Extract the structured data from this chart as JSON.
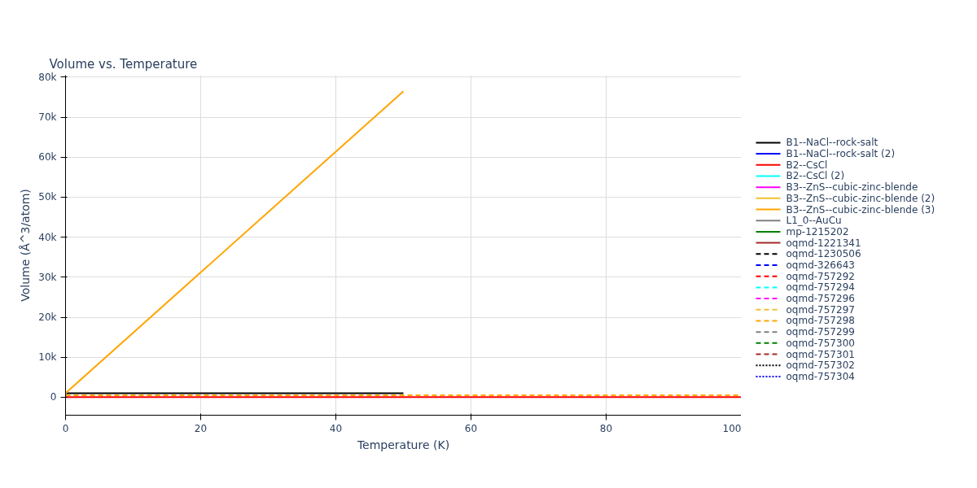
{
  "chart_data": {
    "type": "line",
    "title": "Volume vs. Temperature",
    "xlabel": "Temperature (K)",
    "ylabel": "Volume (Å^3/atom)",
    "xlim": [
      0,
      100
    ],
    "xticks": [
      0,
      20,
      40,
      60,
      80,
      100
    ],
    "ylim": [
      -4500,
      80500
    ],
    "yticks": [
      {
        "value": 0,
        "label": "0"
      },
      {
        "value": 10000,
        "label": "10k"
      },
      {
        "value": 20000,
        "label": "20k"
      },
      {
        "value": 30000,
        "label": "30k"
      },
      {
        "value": 40000,
        "label": "40k"
      },
      {
        "value": 50000,
        "label": "50k"
      },
      {
        "value": 60000,
        "label": "60k"
      },
      {
        "value": 70000,
        "label": "70k"
      },
      {
        "value": 80000,
        "label": "80k"
      }
    ],
    "grid": true,
    "legend": "right",
    "series": [
      {
        "name": "B1--NaCl--rock-salt",
        "color": "#000000",
        "line_style": "solid",
        "x": [
          0,
          50
        ],
        "values": [
          1000,
          1000
        ]
      },
      {
        "name": "B1--NaCl--rock-salt (2)",
        "color": "#0000ff",
        "line_style": "solid",
        "values": [
          null,
          null
        ]
      },
      {
        "name": "B2--CsCl",
        "color": "#ff0000",
        "line_style": "solid",
        "x": [
          0,
          100
        ],
        "values": [
          0,
          0
        ]
      },
      {
        "name": "B2--CsCl (2)",
        "color": "#00ffff",
        "line_style": "solid",
        "values": [
          null,
          null
        ]
      },
      {
        "name": "B3--ZnS--cubic-zinc-blende",
        "color": "#ff00ff",
        "line_style": "solid",
        "values": [
          null,
          null
        ]
      },
      {
        "name": "B3--ZnS--cubic-zinc-blende (2)",
        "color": "#f0c030",
        "line_style": "solid",
        "values": [
          null,
          null
        ]
      },
      {
        "name": "B3--ZnS--cubic-zinc-blende (3)",
        "color": "#ffa500",
        "line_style": "solid",
        "x": [
          0,
          50
        ],
        "values": [
          1000,
          76500
        ]
      },
      {
        "name": "L1_0--AuCu",
        "color": "#808080",
        "line_style": "solid",
        "values": [
          null,
          null
        ]
      },
      {
        "name": "mp-1215202",
        "color": "#008000",
        "line_style": "solid",
        "values": [
          null,
          null
        ]
      },
      {
        "name": "oqmd-1221341",
        "color": "#a52a2a",
        "line_style": "solid",
        "values": [
          null,
          null
        ]
      },
      {
        "name": "oqmd-1230506",
        "color": "#000000",
        "line_style": "dashed",
        "values": [
          null,
          null
        ]
      },
      {
        "name": "oqmd-326643",
        "color": "#0000ff",
        "line_style": "dashed",
        "values": [
          null,
          null
        ]
      },
      {
        "name": "oqmd-757292",
        "color": "#ff0000",
        "line_style": "dashed",
        "values": [
          null,
          null
        ]
      },
      {
        "name": "oqmd-757294",
        "color": "#00ffff",
        "line_style": "dashed",
        "values": [
          null,
          null
        ]
      },
      {
        "name": "oqmd-757296",
        "color": "#ff00ff",
        "line_style": "dashed",
        "values": [
          null,
          null
        ]
      },
      {
        "name": "oqmd-757297",
        "color": "#f0c030",
        "line_style": "dashed",
        "values": [
          null,
          null
        ]
      },
      {
        "name": "oqmd-757298",
        "color": "#ffa500",
        "line_style": "dashed",
        "x": [
          0,
          100
        ],
        "values": [
          500,
          500
        ]
      },
      {
        "name": "oqmd-757299",
        "color": "#808080",
        "line_style": "dashed",
        "values": [
          null,
          null
        ]
      },
      {
        "name": "oqmd-757300",
        "color": "#008000",
        "line_style": "dashed",
        "values": [
          null,
          null
        ]
      },
      {
        "name": "oqmd-757301",
        "color": "#a52a2a",
        "line_style": "dashed",
        "values": [
          null,
          null
        ]
      },
      {
        "name": "oqmd-757302",
        "color": "#000000",
        "line_style": "dotted",
        "values": [
          null,
          null
        ]
      },
      {
        "name": "oqmd-757304",
        "color": "#0000ff",
        "line_style": "dotted",
        "values": [
          null,
          null
        ]
      }
    ]
  }
}
